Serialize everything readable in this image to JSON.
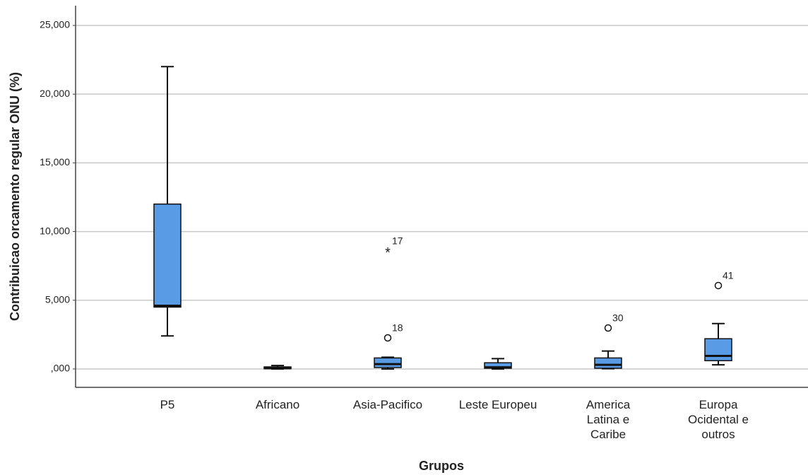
{
  "chart_data": {
    "type": "boxplot",
    "y_label": "Contribuicao orcamento regular ONU (%)",
    "x_label": "Grupos",
    "categories": [
      "P5",
      "Africano",
      "Asia-Pacifico",
      "Leste Europeu",
      "America\nLatina e\nCaribe",
      "Europa\nOcidental e\noutros"
    ],
    "color": "#5a9be6",
    "grid": true,
    "ylim": [
      -1.34,
      26.44
    ],
    "yticks": [
      {
        "value": 0,
        "label": ",000"
      },
      {
        "value": 5,
        "label": "5,000"
      },
      {
        "value": 10,
        "label": "10,000"
      },
      {
        "value": 15,
        "label": "15,000"
      },
      {
        "value": 20,
        "label": "20,000"
      },
      {
        "value": 25,
        "label": "25,000"
      }
    ],
    "boxes": [
      {
        "min": 2.4,
        "q1": 4.5,
        "median": 4.6,
        "q3": 12.0,
        "max": 22.0,
        "outliers": []
      },
      {
        "min": 0.0,
        "q1": 0.02,
        "median": 0.05,
        "q3": 0.15,
        "max": 0.25,
        "outliers": []
      },
      {
        "min": 0.0,
        "q1": 0.1,
        "median": 0.35,
        "q3": 0.8,
        "max": 0.85,
        "outliers": [
          {
            "value": 8.6,
            "label": "17",
            "symbol": "star"
          },
          {
            "value": 2.26,
            "label": "18",
            "symbol": "circle"
          }
        ]
      },
      {
        "min": 0.0,
        "q1": 0.05,
        "median": 0.12,
        "q3": 0.45,
        "max": 0.75,
        "outliers": []
      },
      {
        "min": 0.02,
        "q1": 0.05,
        "median": 0.3,
        "q3": 0.8,
        "max": 1.3,
        "outliers": [
          {
            "value": 2.98,
            "label": "30",
            "symbol": "circle"
          }
        ]
      },
      {
        "min": 0.3,
        "q1": 0.6,
        "median": 0.95,
        "q3": 2.2,
        "max": 3.3,
        "outliers": [
          {
            "value": 6.07,
            "label": "41",
            "symbol": "circle"
          }
        ]
      }
    ]
  }
}
